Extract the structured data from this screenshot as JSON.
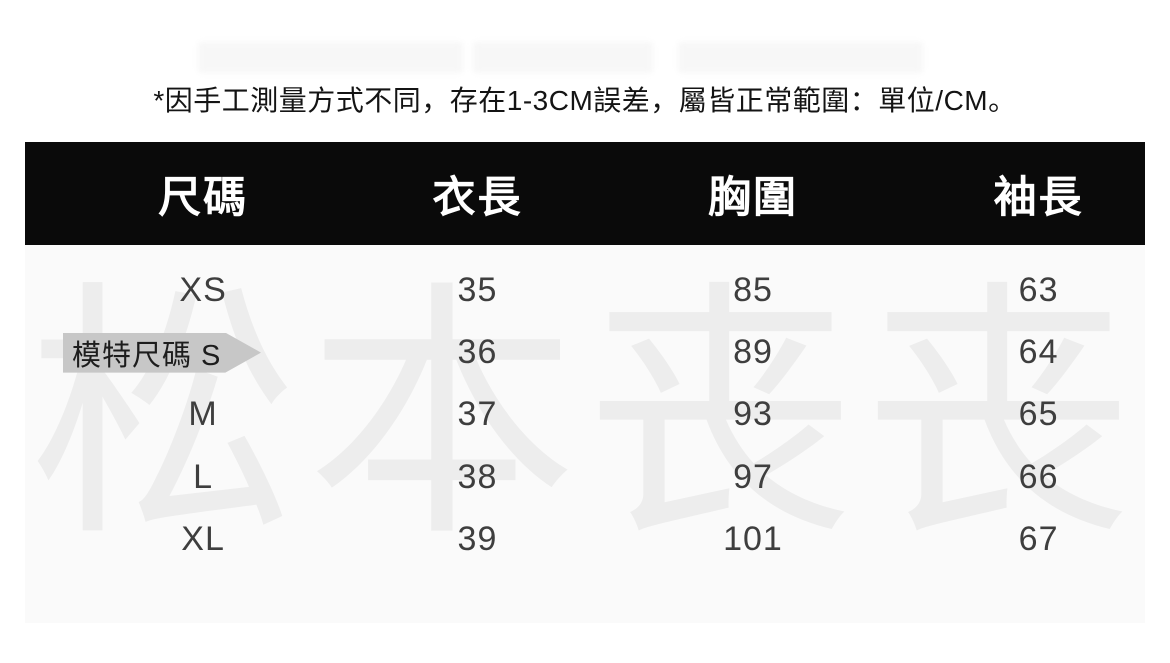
{
  "note": "*因手工測量方式不同，存在1-3CM誤差，屬皆正常範圍：單位/CM。",
  "watermark": "松本丧丧",
  "table": {
    "columns": [
      "尺碼",
      "衣長",
      "胸圍",
      "袖長"
    ],
    "rows": [
      {
        "size": "XS",
        "length": "35",
        "chest": "85",
        "sleeve": "63",
        "model": false,
        "tag": ""
      },
      {
        "size": "S",
        "length": "36",
        "chest": "89",
        "sleeve": "64",
        "model": true,
        "tag": "模特尺碼 S"
      },
      {
        "size": "M",
        "length": "37",
        "chest": "93",
        "sleeve": "65",
        "model": false,
        "tag": ""
      },
      {
        "size": "L",
        "length": "38",
        "chest": "97",
        "sleeve": "66",
        "model": false,
        "tag": ""
      },
      {
        "size": "XL",
        "length": "39",
        "chest": "101",
        "sleeve": "67",
        "model": false,
        "tag": ""
      }
    ]
  },
  "chart_data": {
    "type": "table",
    "title": "服裝尺碼表",
    "columns": [
      "尺碼",
      "衣長",
      "胸圍",
      "袖長"
    ],
    "rows": [
      [
        "XS",
        35,
        85,
        63
      ],
      [
        "S",
        36,
        89,
        64
      ],
      [
        "M",
        37,
        93,
        65
      ],
      [
        "L",
        38,
        97,
        66
      ],
      [
        "XL",
        39,
        101,
        67
      ]
    ],
    "unit": "CM",
    "note": "*因手工測量方式不同，存在1-3CM誤差，屬皆正常範圍：單位/CM。",
    "annotation": "模特尺碼 S（箭頭標籤指向 S 行）",
    "watermark": "松本丧丧"
  },
  "colors": {
    "header_bg": "#0a0a0a",
    "header_text": "#ffffff",
    "card_bg": "#fafafa",
    "watermark": "#ededed",
    "tag_bg": "#c7c7c7",
    "body_text": "#3e3e3e"
  }
}
